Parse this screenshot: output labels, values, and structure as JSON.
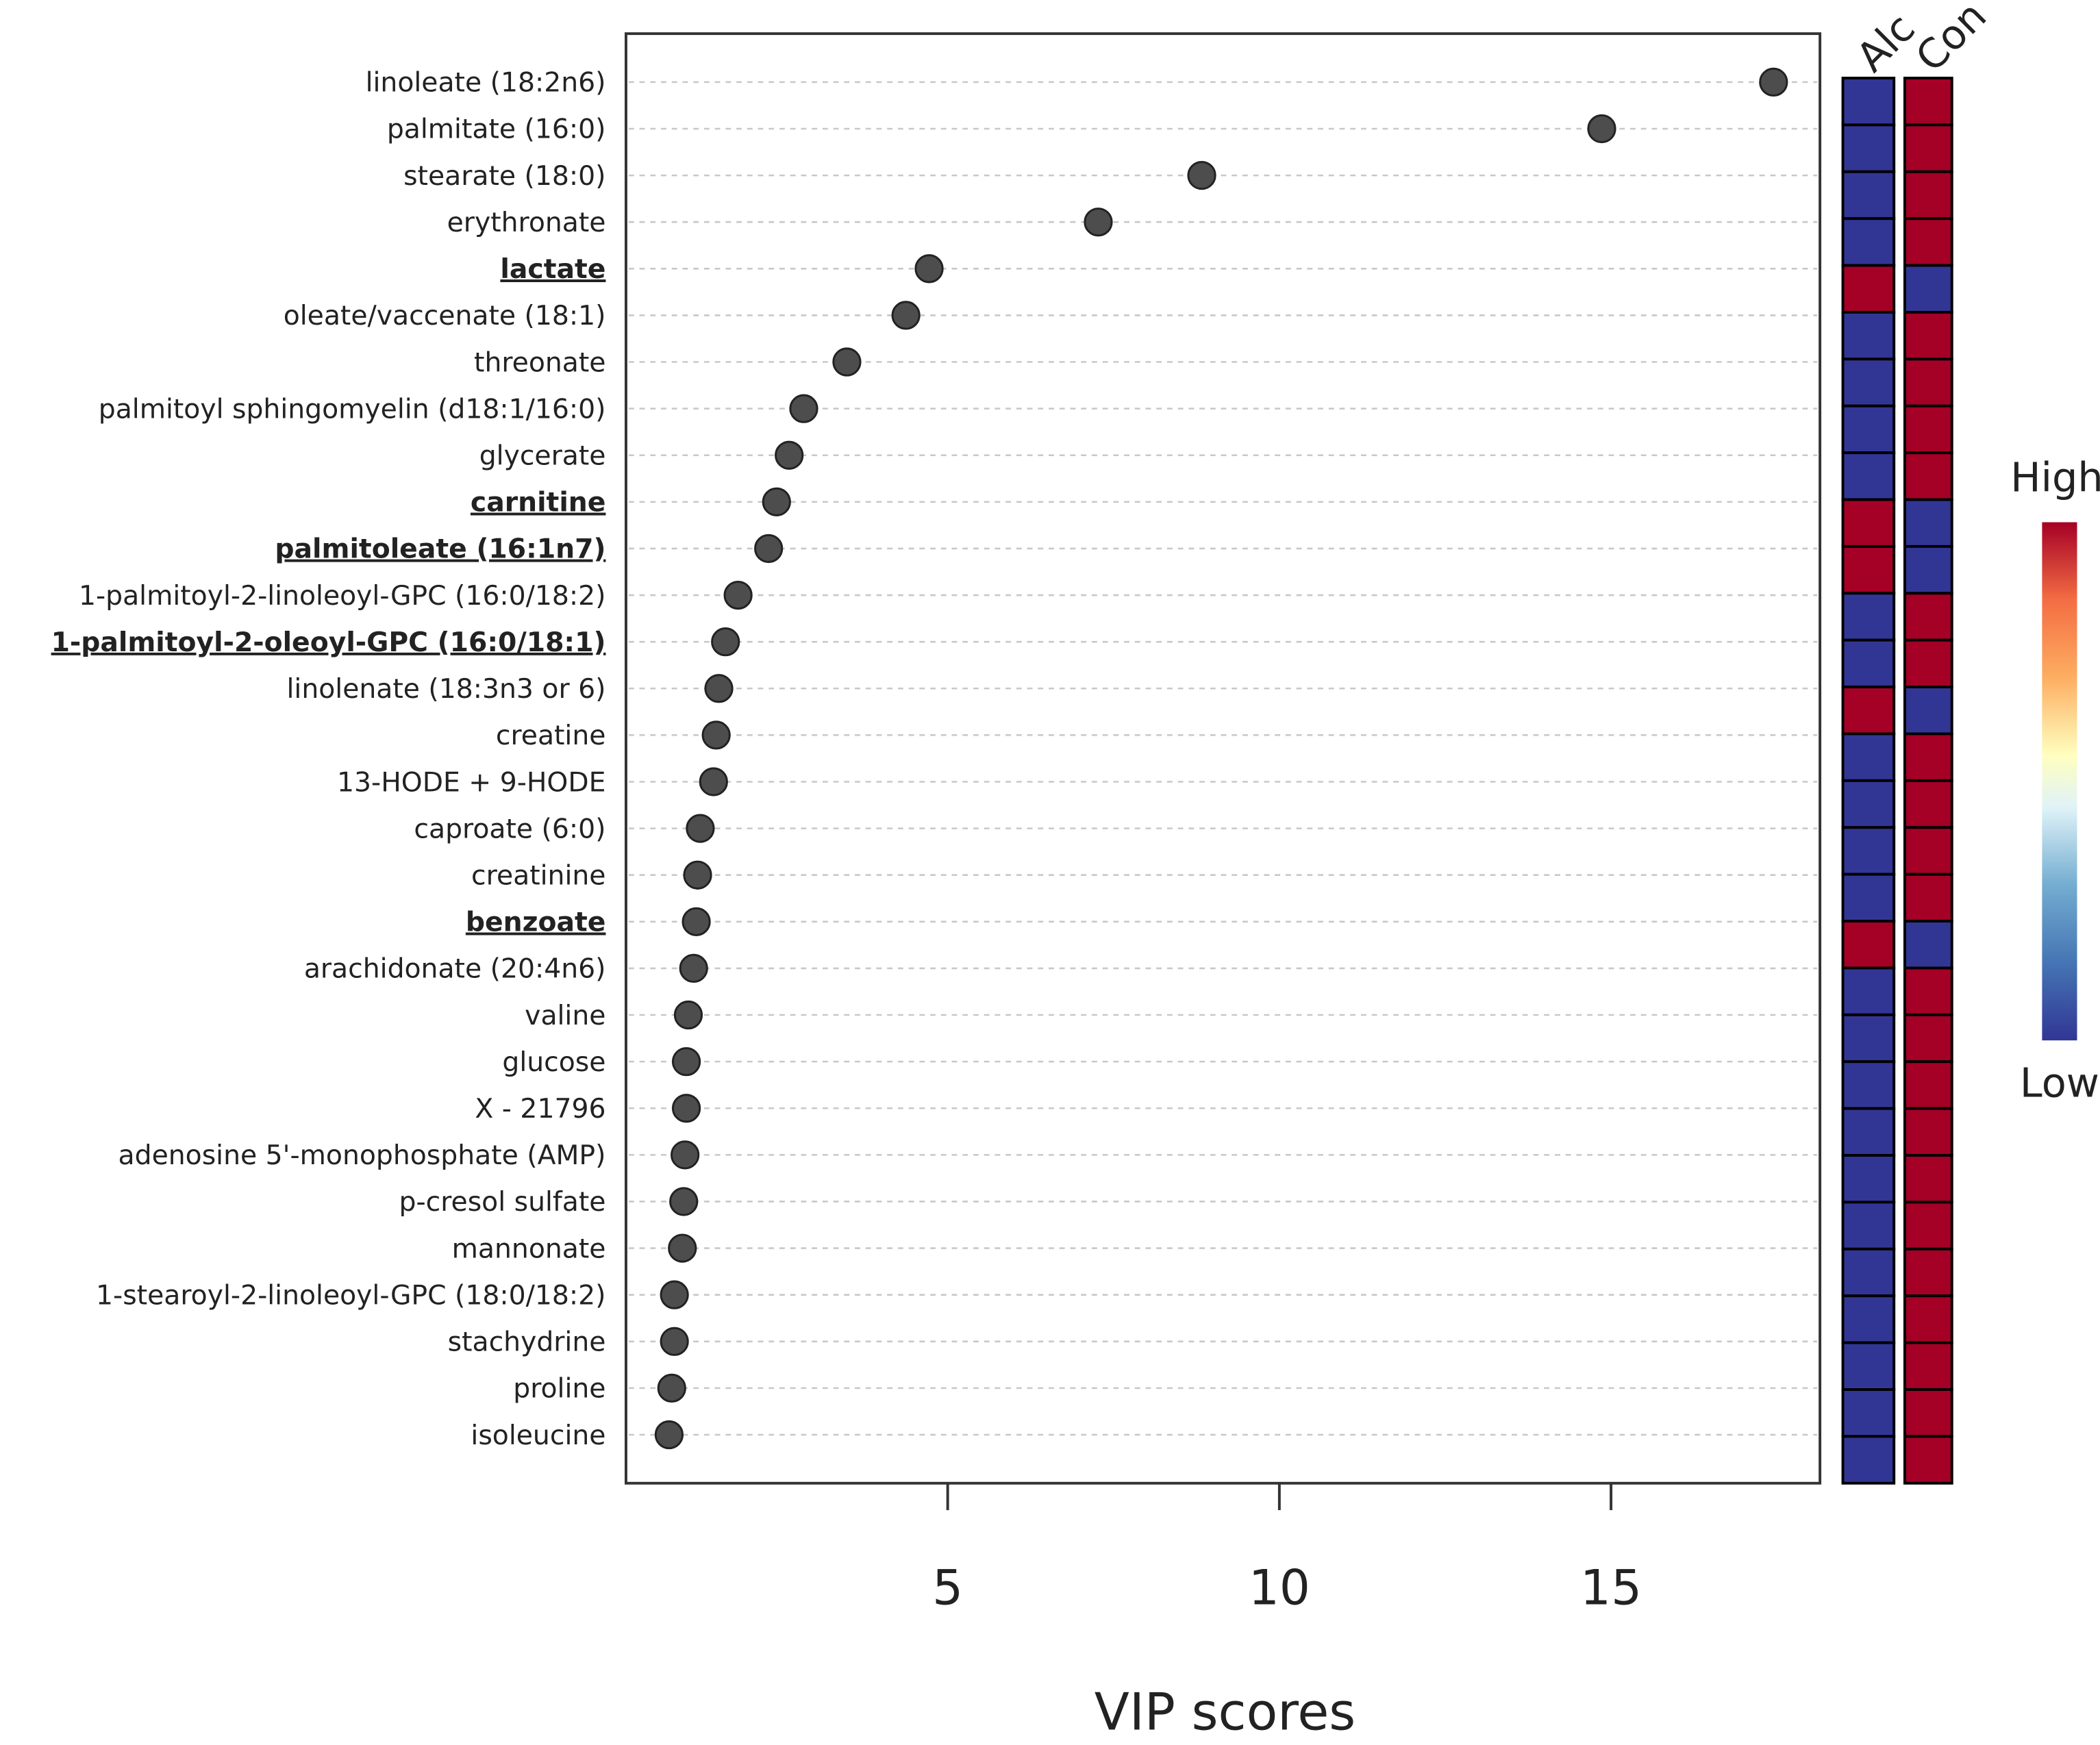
{
  "chart_data": {
    "type": "scatter",
    "title": "",
    "xlabel": "VIP scores",
    "ylabel": "",
    "xlim": [
      0.15,
      18.15
    ],
    "xticks": [
      5,
      10,
      15
    ],
    "grid": "horizontal dashed",
    "categories": [
      "linoleate (18:2n6)",
      "palmitate (16:0)",
      "stearate (18:0)",
      "erythronate",
      "lactate",
      "oleate/vaccenate (18:1)",
      "threonate",
      "palmitoyl sphingomyelin (d18:1/16:0)",
      "glycerate",
      "carnitine",
      "palmitoleate (16:1n7)",
      "1-palmitoyl-2-linoleoyl-GPC (16:0/18:2)",
      "1-palmitoyl-2-oleoyl-GPC (16:0/18:1)",
      "linolenate (18:3n3 or 6)",
      "creatine",
      "13-HODE + 9-HODE",
      "caproate (6:0)",
      "creatinine",
      "benzoate",
      "arachidonate (20:4n6)",
      "valine",
      "glucose",
      "X - 21796",
      "adenosine 5'-monophosphate (AMP)",
      "p-cresol sulfate",
      "mannonate",
      "1-stearoyl-2-linoleoyl-GPC (18:0/18:2)",
      "stachydrine",
      "proline",
      "isoleucine"
    ],
    "underlined": [
      "lactate",
      "carnitine",
      "palmitoleate (16:1n7)",
      "1-palmitoyl-2-oleoyl-GPC (16:0/18:1)",
      "benzoate"
    ],
    "values": [
      17.45,
      14.86,
      8.83,
      7.27,
      4.72,
      4.37,
      3.48,
      2.83,
      2.61,
      2.42,
      2.3,
      1.84,
      1.65,
      1.55,
      1.51,
      1.47,
      1.27,
      1.23,
      1.21,
      1.17,
      1.09,
      1.06,
      1.06,
      1.04,
      1.02,
      1.0,
      0.88,
      0.88,
      0.84,
      0.8
    ],
    "heatmap": {
      "columns": [
        "Alc",
        "Con"
      ],
      "alc_high": [
        "lactate",
        "carnitine",
        "palmitoleate (16:1n7)",
        "linolenate (18:3n3 or 6)",
        "benzoate"
      ],
      "high_color": "#a50026",
      "low_color": "#313695"
    },
    "legend": {
      "high": "High",
      "low": "Low",
      "placement": "right"
    },
    "colors": {
      "point": "#4d4d4d",
      "grid": "#c8c8c8"
    }
  }
}
